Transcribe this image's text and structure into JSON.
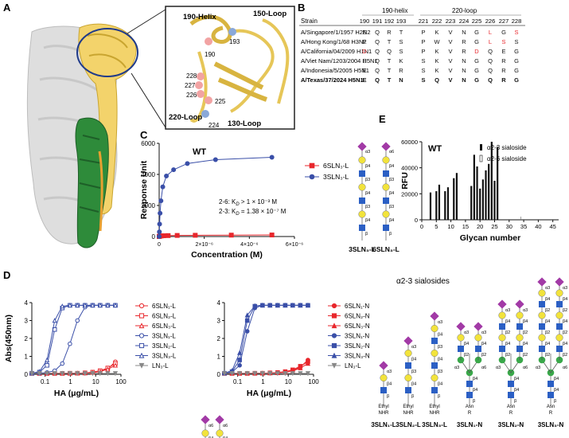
{
  "panels": {
    "A": {
      "letter": "A",
      "inset_labels": {
        "helix190": "190-Helix",
        "loop150": "150-Loop",
        "loop220": "220-Loop",
        "loop130": "130-Loop",
        "residues": [
          "190",
          "193",
          "228",
          "227",
          "226",
          "225",
          "224"
        ]
      }
    },
    "B": {
      "letter": "B",
      "group_headers": [
        "190-helix",
        "220-loop"
      ],
      "strain_header": "Strain",
      "positions": [
        "190",
        "191",
        "192",
        "193",
        "221",
        "222",
        "223",
        "224",
        "225",
        "226",
        "227",
        "228"
      ],
      "rows": [
        {
          "strain": "A/Singapore/1/1957 H2N2",
          "bold": false,
          "res": [
            "E",
            "Q",
            "R",
            "T",
            "P",
            "K",
            "V",
            "N",
            "G",
            "L",
            "G",
            "S"
          ],
          "red": [
            9,
            11
          ]
        },
        {
          "strain": "A/Hong Kong/1/68 H3N2",
          "bold": false,
          "res": [
            "E",
            "Q",
            "T",
            "S",
            "P",
            "W",
            "V",
            "R",
            "G",
            "L",
            "S",
            "S"
          ],
          "red": [
            9,
            10
          ]
        },
        {
          "strain": "A/California/04/2009 H1N1",
          "bold": false,
          "res": [
            "D",
            "Q",
            "Q",
            "S",
            "P",
            "K",
            "V",
            "R",
            "D",
            "Q",
            "E",
            "G"
          ],
          "red": [
            0,
            8
          ]
        },
        {
          "strain": "A/Viet Nam/1203/2004 H5N1",
          "bold": false,
          "res": [
            "E",
            "Q",
            "T",
            "K",
            "S",
            "K",
            "V",
            "N",
            "G",
            "Q",
            "R",
            "G"
          ],
          "red": []
        },
        {
          "strain": "A/Indonesia/5/2005 H5N1",
          "bold": false,
          "res": [
            "E",
            "Q",
            "T",
            "R",
            "S",
            "K",
            "V",
            "N",
            "G",
            "Q",
            "R",
            "G"
          ],
          "red": []
        },
        {
          "strain": "A/Texas/37/2024 H5N1",
          "bold": true,
          "res": [
            "E",
            "Q",
            "T",
            "N",
            "S",
            "Q",
            "V",
            "N",
            "G",
            "Q",
            "R",
            "G"
          ],
          "red": []
        }
      ]
    },
    "C": {
      "letter": "C",
      "wt": "WT",
      "kd_line1": "2-6: K",
      "kd_line1_rest": " > 1 × 10⁻³ M",
      "kd_line2": "2-3: K",
      "kd_line2_rest": " = 1.38 × 10⁻⁷ M",
      "kd_sub": "D",
      "glycan_labels": [
        "3SLN₃-L",
        "6SLN₃-L"
      ]
    },
    "D": {
      "letter": "D",
      "legend_left": [
        "6SLN₁-L",
        "6SLN₂-L",
        "6SLN₃-L",
        "3SLN₁-L",
        "3SLN₂-L",
        "3SLN₃-L",
        "LN₃-L"
      ],
      "legend_right": [
        "6SLN₁-N",
        "6SLN₂-N",
        "6SLN₃-N",
        "3SLN₁-N",
        "3SLN₂-N",
        "3SLN₃-N",
        "LN₃-L"
      ]
    },
    "E": {
      "letter": "E",
      "wt": "WT",
      "legend": [
        "α2-3 sialoside",
        "α2-6 sialoside"
      ]
    },
    "glycans": {
      "title": "α2-3 sialosides",
      "labels": [
        "3SLN₁-L",
        "3SLN₂-L",
        "3SLN₃-L",
        "3SLN₁-N",
        "3SLN₂-N",
        "3SLN₃-N"
      ],
      "linkers_L": [
        "Ethyl",
        "NHR"
      ],
      "linkers_N": [
        "Asn",
        "R"
      ],
      "link_b": "β",
      "link_a3": "α3",
      "link_a6": "α6",
      "link_b3": "β3",
      "link_b4": "β4",
      "link_b2": "β2"
    }
  },
  "chart_data": [
    {
      "id": "C",
      "type": "scatter",
      "title": "",
      "xlabel": "Concentration (M)",
      "ylabel": "Response Unit",
      "xlim": [
        0,
        6e-06
      ],
      "ylim": [
        0,
        6000
      ],
      "xticks": [
        "0",
        "2×10⁻⁶",
        "4×10⁻⁶",
        "6×10⁻⁶"
      ],
      "yticks": [
        "0",
        "2000",
        "4000",
        "6000"
      ],
      "legend_position": "top-right",
      "series": [
        {
          "name": "6SLN₃-L",
          "color": "#e8272c",
          "marker": "square",
          "x": [
            0,
            2e-08,
            5e-08,
            1e-07,
            2e-07,
            4e-07,
            8e-07,
            1.6e-06,
            3.2e-06,
            5e-06
          ],
          "y": [
            0,
            20,
            30,
            40,
            50,
            60,
            70,
            80,
            90,
            100
          ]
        },
        {
          "name": "3SLN₃-L",
          "color": "#3a4fa8",
          "marker": "circle",
          "x": [
            0,
            1e-08,
            2e-08,
            4e-08,
            8e-08,
            1.6e-07,
            3.2e-07,
            6.4e-07,
            1.25e-06,
            2.5e-06,
            5e-06
          ],
          "y": [
            0,
            300,
            800,
            1500,
            2300,
            3200,
            3900,
            4300,
            4700,
            4950,
            5100
          ]
        }
      ]
    },
    {
      "id": "D-left",
      "type": "line",
      "xlabel": "HA (μg/mL)",
      "ylabel": "Abs(450nm)",
      "xscale": "log",
      "xlim": [
        0.03,
        100
      ],
      "ylim": [
        0,
        4
      ],
      "xticks": [
        "0.1",
        "1",
        "10",
        "100"
      ],
      "yticks": [
        "0",
        "1",
        "2",
        "3",
        "4"
      ],
      "x": [
        0.03,
        0.06,
        0.12,
        0.24,
        0.48,
        0.96,
        1.9,
        3.8,
        7.6,
        15,
        30,
        60
      ],
      "series": [
        {
          "name": "6SLN₁-L",
          "color": "#e8272c",
          "marker": "circle-open",
          "y": [
            0.05,
            0.05,
            0.05,
            0.05,
            0.05,
            0.05,
            0.06,
            0.07,
            0.1,
            0.15,
            0.3,
            0.7
          ]
        },
        {
          "name": "6SLN₂-L",
          "color": "#e8272c",
          "marker": "square-open",
          "y": [
            0.05,
            0.05,
            0.05,
            0.05,
            0.05,
            0.06,
            0.06,
            0.08,
            0.12,
            0.2,
            0.35,
            0.6
          ]
        },
        {
          "name": "6SLN₃-L",
          "color": "#e8272c",
          "marker": "triangle-open",
          "y": [
            0.05,
            0.05,
            0.05,
            0.05,
            0.05,
            0.05,
            0.06,
            0.07,
            0.1,
            0.15,
            0.28,
            0.5
          ]
        },
        {
          "name": "3SLN₁-L",
          "color": "#3a4fa8",
          "marker": "circle-open",
          "y": [
            0.05,
            0.06,
            0.1,
            0.2,
            0.6,
            1.7,
            3.0,
            3.75,
            3.85,
            3.85,
            3.85,
            3.85
          ]
        },
        {
          "name": "3SLN₂-L",
          "color": "#3a4fa8",
          "marker": "square-open",
          "y": [
            0.06,
            0.12,
            0.5,
            2.5,
            3.7,
            3.85,
            3.85,
            3.85,
            3.85,
            3.85,
            3.85,
            3.85
          ]
        },
        {
          "name": "3SLN₃-L",
          "color": "#3a4fa8",
          "marker": "triangle-open",
          "y": [
            0.06,
            0.15,
            0.8,
            3.0,
            3.8,
            3.85,
            3.85,
            3.85,
            3.85,
            3.85,
            3.85,
            3.85
          ]
        },
        {
          "name": "LN₃-L",
          "color": "#888888",
          "marker": "triangle-down",
          "y": [
            0.05,
            0.05,
            0.05,
            0.05,
            0.05,
            0.05,
            0.05,
            0.05,
            0.05,
            0.05,
            0.05,
            0.05
          ]
        }
      ]
    },
    {
      "id": "D-right",
      "type": "line",
      "xlabel": "HA (μg/mL)",
      "xscale": "log",
      "xlim": [
        0.03,
        100
      ],
      "ylim": [
        0,
        4
      ],
      "xticks": [
        "0.1",
        "1",
        "10",
        "100"
      ],
      "yticks": [
        "0",
        "1",
        "2",
        "3",
        "4"
      ],
      "x": [
        0.03,
        0.06,
        0.12,
        0.24,
        0.48,
        0.96,
        1.9,
        3.8,
        7.6,
        15,
        30,
        60
      ],
      "series": [
        {
          "name": "6SLN₁-N",
          "color": "#e8272c",
          "marker": "circle",
          "y": [
            0.05,
            0.05,
            0.05,
            0.05,
            0.05,
            0.06,
            0.07,
            0.09,
            0.13,
            0.2,
            0.4,
            0.8
          ]
        },
        {
          "name": "6SLN₂-N",
          "color": "#e8272c",
          "marker": "square",
          "y": [
            0.05,
            0.05,
            0.05,
            0.05,
            0.06,
            0.06,
            0.08,
            0.1,
            0.15,
            0.25,
            0.45,
            0.7
          ]
        },
        {
          "name": "6SLN₃-N",
          "color": "#e8272c",
          "marker": "triangle",
          "y": [
            0.05,
            0.05,
            0.05,
            0.05,
            0.05,
            0.06,
            0.07,
            0.08,
            0.12,
            0.18,
            0.35,
            0.6
          ]
        },
        {
          "name": "3SLN₁-N",
          "color": "#3a4fa8",
          "marker": "circle",
          "y": [
            0.06,
            0.12,
            0.5,
            2.4,
            3.7,
            3.85,
            3.85,
            3.85,
            3.85,
            3.85,
            3.85,
            3.85
          ]
        },
        {
          "name": "3SLN₂-N",
          "color": "#3a4fa8",
          "marker": "square",
          "y": [
            0.06,
            0.15,
            0.8,
            3.0,
            3.8,
            3.85,
            3.85,
            3.85,
            3.85,
            3.85,
            3.85,
            3.85
          ]
        },
        {
          "name": "3SLN₃-N",
          "color": "#3a4fa8",
          "marker": "triangle",
          "y": [
            0.07,
            0.2,
            1.2,
            3.3,
            3.82,
            3.85,
            3.85,
            3.85,
            3.85,
            3.85,
            3.85,
            3.85
          ]
        },
        {
          "name": "LN₃-L",
          "color": "#888888",
          "marker": "triangle-down",
          "y": [
            0.05,
            0.05,
            0.05,
            0.05,
            0.05,
            0.05,
            0.05,
            0.05,
            0.05,
            0.05,
            0.05,
            0.05
          ]
        }
      ]
    },
    {
      "id": "E",
      "type": "bar",
      "xlabel": "Glycan number",
      "ylabel": "RFU",
      "xlim": [
        0,
        47
      ],
      "ylim": [
        0,
        60000
      ],
      "xticks": [
        "0",
        "5",
        "10",
        "15",
        "20",
        "25",
        "30",
        "35",
        "40",
        "45"
      ],
      "yticks": [
        "0",
        "20000",
        "40000",
        "60000"
      ],
      "categories": [
        1,
        2,
        3,
        4,
        5,
        6,
        7,
        8,
        9,
        10,
        11,
        12,
        13,
        14,
        15,
        16,
        17,
        18,
        19,
        20,
        21,
        22,
        23,
        24,
        25,
        26,
        27,
        28,
        29,
        30,
        31,
        32,
        33,
        34,
        35,
        36,
        37,
        38,
        39,
        40,
        41,
        42,
        43,
        44,
        45,
        46
      ],
      "series": [
        {
          "name": "α2-3 sialoside",
          "color": "#111111",
          "values": [
            0,
            0,
            21000,
            0,
            22000,
            27000,
            0,
            22000,
            25000,
            0,
            32000,
            36000,
            0,
            0,
            0,
            0,
            26000,
            50000,
            41000,
            24000,
            31000,
            38000,
            43000,
            60000,
            30000,
            56000,
            0,
            0,
            0,
            0,
            0,
            0,
            0,
            0,
            0,
            0,
            0,
            0,
            0,
            0,
            0,
            0,
            0,
            0,
            0,
            0
          ]
        },
        {
          "name": "α2-6 sialoside",
          "color": "#ffffff",
          "values": [
            0,
            0,
            0,
            0,
            0,
            0,
            0,
            0,
            0,
            0,
            0,
            0,
            0,
            0,
            0,
            0,
            0,
            0,
            0,
            0,
            0,
            0,
            0,
            0,
            0,
            0,
            0,
            0,
            0,
            0,
            0,
            0,
            0,
            0,
            0,
            0,
            0,
            0,
            0,
            0,
            0,
            0,
            0,
            0,
            0,
            0
          ]
        }
      ]
    }
  ]
}
